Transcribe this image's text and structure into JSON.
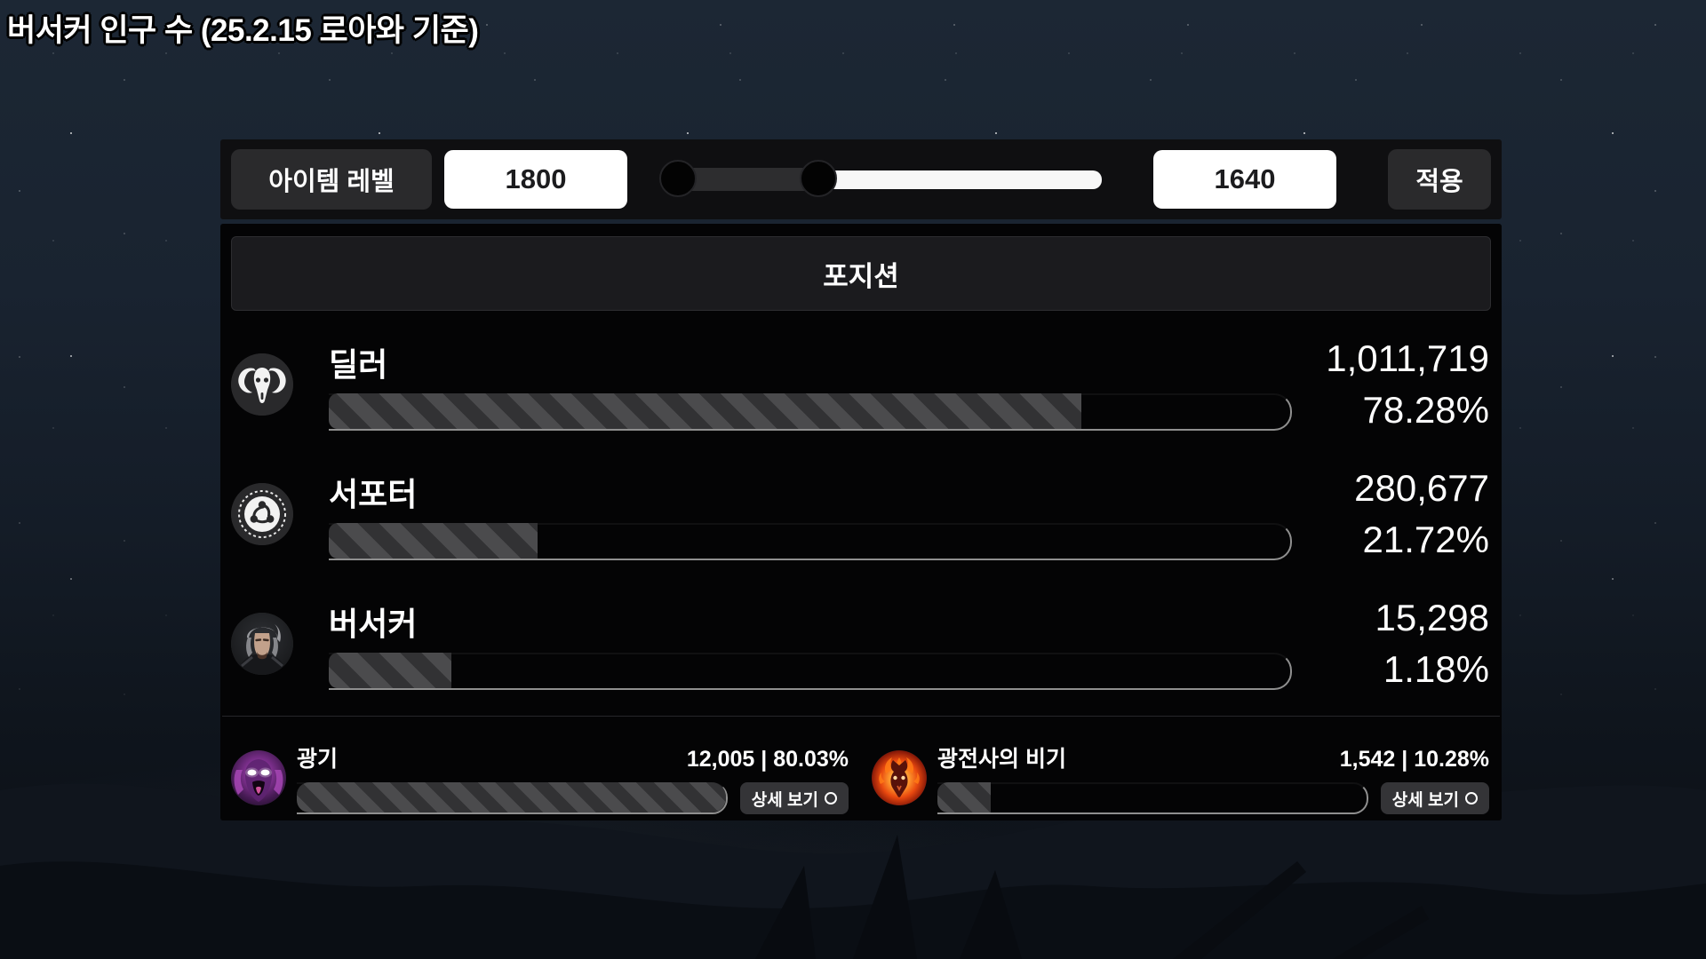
{
  "title": "버서커 인구 수 (25.2.15 로아와 기준)",
  "controls": {
    "item_level_label": "아이템 레벨",
    "level_from": "1800",
    "level_to": "1640",
    "apply_label": "적용"
  },
  "position_section": {
    "header": "포지션",
    "rows": [
      {
        "label": "딜러",
        "icon": "ram-skull-icon",
        "count": "1,011,719",
        "percent": "78.28%",
        "bar_width": "78.3%"
      },
      {
        "label": "서포터",
        "icon": "support-emblem-icon",
        "count": "280,677",
        "percent": "21.72%",
        "bar_width": "21.7%"
      },
      {
        "label": "버서커",
        "icon": "berserker-portrait-icon",
        "count": "15,298",
        "percent": "1.18%",
        "bar_width": "12.8%"
      }
    ]
  },
  "builds": {
    "detail_button_label": "상세 보기",
    "items": [
      {
        "label": "광기",
        "icon": "madness-demon-icon",
        "stat": "12,005 | 80.03%",
        "bar_width": "100%"
      },
      {
        "label": "광전사의 비기",
        "icon": "berserker-technique-icon",
        "stat": "1,542 | 10.28%",
        "bar_width": "12.5%"
      }
    ]
  },
  "colors": {
    "bar_stripe_light": "#4b4b4d",
    "bar_stripe_dark": "#323234",
    "track_edge": "#8f8f8f",
    "panel_bg": "#040405",
    "control_bg": "#0f0f11",
    "button_bg": "#2a2a2c",
    "madness_purple": "#8e3b9e",
    "technique_orange": "#ff7b16"
  }
}
